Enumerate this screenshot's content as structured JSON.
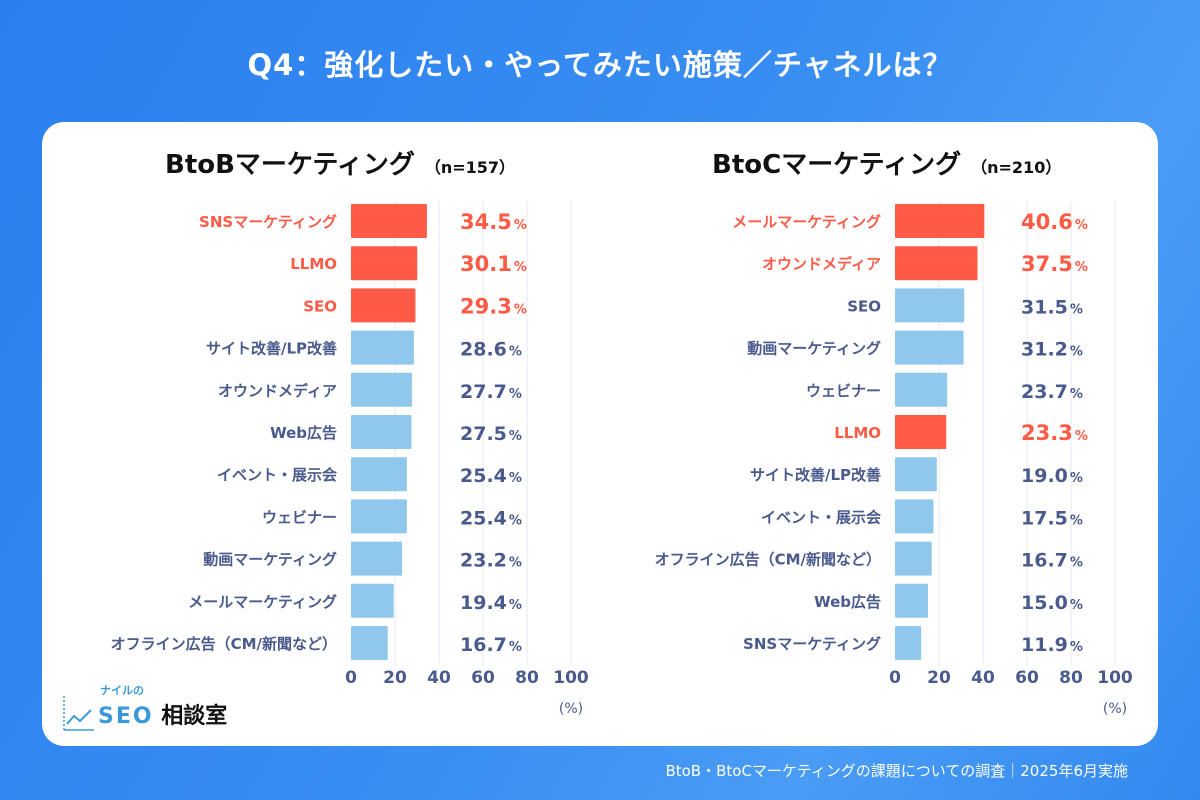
{
  "title": "Q4：強化したい・やってみたい施策／チャネルは？",
  "footer": "BtoB・BtoCマーケティングの課題についての調査｜2025年6月実施",
  "logo": {
    "small": "ナイルの",
    "seo": "SEO",
    "jp": "相談室"
  },
  "colors": {
    "highlight": "#FF5A45",
    "normal": "#8FC8EC",
    "label": "#4A5A8C",
    "grid": "#E6E8EF"
  },
  "chart_data": [
    {
      "type": "bar",
      "orientation": "horizontal",
      "title": "BtoBマーケティング",
      "n_label": "（n=157）",
      "unit": "%",
      "xlabel": "(%)",
      "xlim": [
        0,
        100
      ],
      "xticks": [
        "0",
        "20",
        "40",
        "60",
        "80",
        "100"
      ],
      "grid": true,
      "categories": [
        "SNSマーケティング",
        "LLMO",
        "SEO",
        "サイト改善/LP改善",
        "オウンドメディア",
        "Web広告",
        "イベント・展示会",
        "ウェビナー",
        "動画マーケティング",
        "メールマーケティング",
        "オフライン広告（CM/新聞など）"
      ],
      "values": [
        34.5,
        30.1,
        29.3,
        28.6,
        27.7,
        27.5,
        25.4,
        25.4,
        23.2,
        19.4,
        16.7
      ],
      "highlighted": [
        true,
        true,
        true,
        false,
        false,
        false,
        false,
        false,
        false,
        false,
        false
      ]
    },
    {
      "type": "bar",
      "orientation": "horizontal",
      "title": "BtoCマーケティング",
      "n_label": "（n=210）",
      "unit": "%",
      "xlabel": "(%)",
      "xlim": [
        0,
        100
      ],
      "xticks": [
        "0",
        "20",
        "40",
        "60",
        "80",
        "100"
      ],
      "grid": true,
      "categories": [
        "メールマーケティング",
        "オウンドメディア",
        "SEO",
        "動画マーケティング",
        "ウェビナー",
        "LLMO",
        "サイト改善/LP改善",
        "イベント・展示会",
        "オフライン広告（CM/新聞など）",
        "Web広告",
        "SNSマーケティング"
      ],
      "values": [
        40.6,
        37.5,
        31.5,
        31.2,
        23.7,
        23.3,
        19.0,
        17.5,
        16.7,
        15.0,
        11.9
      ],
      "highlighted": [
        true,
        true,
        false,
        false,
        false,
        true,
        false,
        false,
        false,
        false,
        false
      ]
    }
  ]
}
